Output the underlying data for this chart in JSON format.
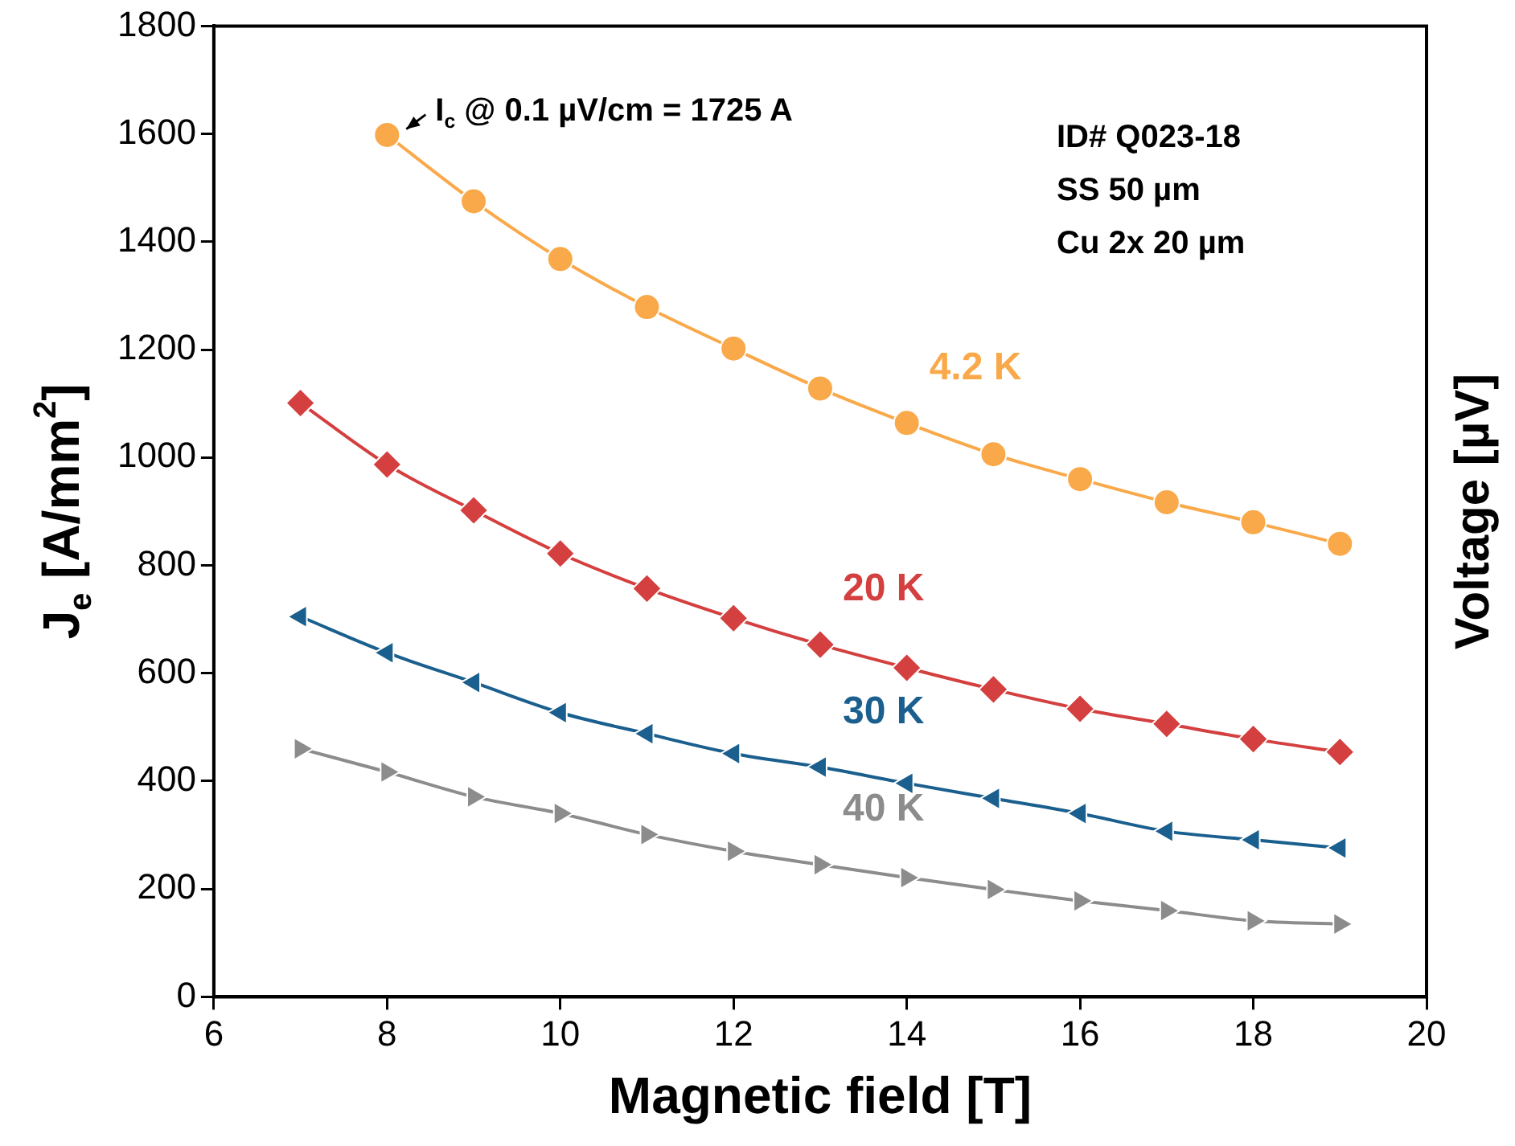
{
  "chart_data": {
    "type": "line",
    "xlabel": "Magnetic field [T]",
    "ylabel": "J$_{e}$ [A/mm$^{2}$]",
    "y2label": "Voltage [µV]",
    "xlim": [
      6,
      20
    ],
    "xticks": [
      6,
      8,
      10,
      12,
      14,
      16,
      18,
      20
    ],
    "ylim": [
      0,
      1800
    ],
    "yticks": [
      0,
      200,
      400,
      600,
      800,
      1000,
      1200,
      1400,
      1600,
      1800
    ],
    "grid": false,
    "legend": false,
    "series": [
      {
        "name": "4.2 K",
        "color": "#f9a94a",
        "marker": "circle",
        "x": [
          8,
          9,
          10,
          11,
          12,
          13,
          14,
          15,
          16,
          17,
          18,
          19
        ],
        "values": [
          1598,
          1475,
          1368,
          1279,
          1202,
          1128,
          1064,
          1006,
          960,
          917,
          880,
          840
        ]
      },
      {
        "name": "20 K",
        "color": "#d43f3f",
        "marker": "diamond",
        "x": [
          7,
          8,
          9,
          10,
          11,
          12,
          13,
          14,
          15,
          16,
          17,
          18,
          19
        ],
        "values": [
          1101,
          987,
          902,
          822,
          757,
          702,
          653,
          610,
          570,
          534,
          506,
          478,
          454
        ]
      },
      {
        "name": "30 K",
        "color": "#1a5f8e",
        "marker": "triangle-left",
        "x": [
          7,
          8,
          9,
          10,
          11,
          12,
          13,
          14,
          15,
          16,
          17,
          18,
          19
        ],
        "values": [
          705,
          638,
          583,
          527,
          488,
          451,
          426,
          396,
          368,
          340,
          307,
          291,
          276
        ]
      },
      {
        "name": "40 K",
        "color": "#8c8c8c",
        "marker": "triangle-right",
        "x": [
          7,
          8,
          9,
          10,
          11,
          12,
          13,
          14,
          15,
          16,
          17,
          18,
          19
        ],
        "values": [
          460,
          417,
          371,
          340,
          301,
          270,
          245,
          221,
          199,
          178,
          160,
          141,
          135
        ]
      }
    ],
    "annotations": [
      {
        "text": "I$_{c}$ @ 0.1 µV/cm = 1725 A",
        "x": 8,
        "y": 1600
      },
      "ID# Q023-18",
      "SS 50 µm",
      "Cu 2x 20 µm"
    ]
  }
}
